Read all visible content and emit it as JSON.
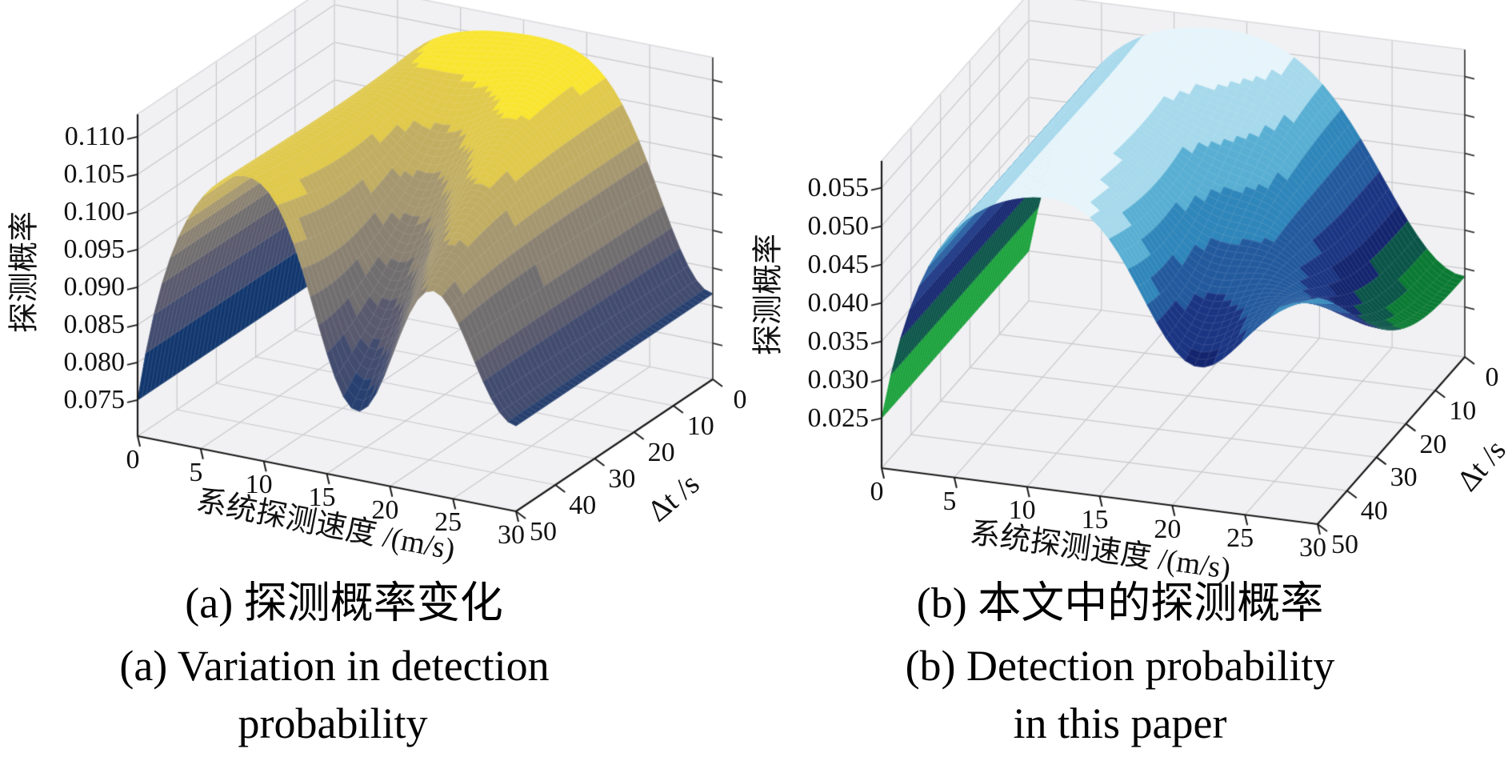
{
  "figure": {
    "background": "#ffffff",
    "plots": [
      {
        "id": "a",
        "z_axis": {
          "label": "探测概率",
          "tick_labels": [
            "0.075",
            "0.080",
            "0.085",
            "0.090",
            "0.095",
            "0.100",
            "0.105",
            "0.110"
          ],
          "tick_values": [
            0.075,
            0.08,
            0.085,
            0.09,
            0.095,
            0.1,
            0.105,
            0.11
          ]
        },
        "x_axis": {
          "label": "系统探测速度 /(m/s)",
          "tick_labels": [
            "0",
            "5",
            "10",
            "15",
            "20",
            "25",
            "30"
          ],
          "tick_values": [
            0,
            5,
            10,
            15,
            20,
            25,
            30
          ]
        },
        "y_axis": {
          "label": "Δt /s",
          "tick_labels": [
            "0",
            "10",
            "20",
            "30",
            "40",
            "50"
          ],
          "tick_values": [
            0,
            10,
            20,
            30,
            40,
            50
          ]
        },
        "caption": {
          "line1": "(a) 探测概率变化",
          "line2": "(a) Variation in detection",
          "line3": "probability"
        },
        "colormap_name": "cividis-banded",
        "band_colors": [
          "#12376e",
          "#27406f",
          "#424c6f",
          "#5a5a6e",
          "#716e6f",
          "#8a8172",
          "#a5976f",
          "#c2ae62",
          "#e0c94b",
          "#f9e530"
        ]
      },
      {
        "id": "b",
        "z_axis": {
          "label": "探测概率",
          "tick_labels": [
            "0.025",
            "0.030",
            "0.035",
            "0.040",
            "0.045",
            "0.050",
            "0.055"
          ],
          "tick_values": [
            0.025,
            0.03,
            0.035,
            0.04,
            0.045,
            0.05,
            0.055
          ]
        },
        "x_axis": {
          "label": "系统探测速度 /(m/s)",
          "tick_labels": [
            "0",
            "5",
            "10",
            "15",
            "20",
            "25",
            "30"
          ],
          "tick_values": [
            0,
            5,
            10,
            15,
            20,
            25,
            30
          ]
        },
        "y_axis": {
          "label": "Δt /s",
          "tick_labels": [
            "0",
            "10",
            "20",
            "30",
            "40",
            "50"
          ],
          "tick_values": [
            0,
            10,
            20,
            30,
            40,
            50
          ]
        },
        "caption": {
          "line1": "(b) 本文中的探测概率",
          "line2": "(b) Detection probability",
          "line3": "in this paper"
        },
        "colormap_name": "ocean-banded",
        "band_colors": [
          "#1ba23c",
          "#0b7b33",
          "#0a5448",
          "#14256f",
          "#1b3583",
          "#235a9e",
          "#2f86ba",
          "#58afd3",
          "#a6d9ec",
          "#e6f5fb"
        ]
      }
    ]
  },
  "chart_data": [
    {
      "type": "surface",
      "title": "(a) 探测概率变化 / (a) Variation in detection probability",
      "xlabel": "系统探测速度 /(m/s)",
      "ylabel": "Δt /s",
      "zlabel": "探测概率",
      "x_ticks": [
        0,
        5,
        10,
        15,
        20,
        25,
        30
      ],
      "y_ticks": [
        0,
        10,
        20,
        30,
        40,
        50
      ],
      "z_ticks": [
        0.075,
        0.08,
        0.085,
        0.09,
        0.095,
        0.1,
        0.105,
        0.11
      ],
      "zlim": [
        0.075,
        0.11
      ],
      "grid": true,
      "legend": false,
      "x_sample": [
        0,
        5,
        10,
        15,
        20,
        25,
        30
      ],
      "y_sample": [
        0,
        10,
        20,
        30,
        40,
        50
      ],
      "z_grid_by_y": [
        [
          0.075,
          0.1034,
          0.1097,
          0.111,
          0.1096,
          0.0966,
          0.0816
        ],
        [
          0.075,
          0.1034,
          0.1076,
          0.1082,
          0.1091,
          0.0966,
          0.0816
        ],
        [
          0.075,
          0.1032,
          0.1057,
          0.1025,
          0.1076,
          0.0966,
          0.0816
        ],
        [
          0.075,
          0.1033,
          0.1051,
          0.0955,
          0.1064,
          0.0966,
          0.0816
        ],
        [
          0.075,
          0.1033,
          0.1056,
          0.0895,
          0.0971,
          0.096,
          0.0816
        ],
        [
          0.075,
          0.1033,
          0.1068,
          0.0862,
          0.0869,
          0.095,
          0.0816
        ]
      ],
      "surface_model": {
        "zmin": 0.075,
        "span": 0.0365,
        "rise_k": 9,
        "valley_depth": 0.88,
        "valley_w_pow": 1.4,
        "valley_uc0": 0.4,
        "valley_uc_slope": 0.18,
        "valley_width": 0.026,
        "corner_depth": 0.82,
        "corner_u_width": 0.04,
        "corner_w_center": 0.5,
        "corner_w_width": 99,
        "corner_w_pow": 2,
        "zmax_clamp": 0.1115
      }
    },
    {
      "type": "surface",
      "title": "(b) 本文中的探测概率 / (b) Detection probability in this paper",
      "xlabel": "系统探测速度 /(m/s)",
      "ylabel": "Δt /s",
      "zlabel": "探测概率",
      "x_ticks": [
        0,
        5,
        10,
        15,
        20,
        25,
        30
      ],
      "y_ticks": [
        0,
        10,
        20,
        30,
        40,
        50
      ],
      "z_ticks": [
        0.025,
        0.03,
        0.035,
        0.04,
        0.045,
        0.05,
        0.055
      ],
      "zlim": [
        0.025,
        0.055
      ],
      "grid": true,
      "legend": false,
      "x_sample": [
        0,
        5,
        10,
        15,
        20,
        25,
        30
      ],
      "y_sample": [
        0,
        10,
        20,
        30,
        40,
        50
      ],
      "z_grid_by_y": [
        [
          0.025,
          0.0507,
          0.0563,
          0.0567,
          0.0495,
          0.036,
          0.029
        ],
        [
          0.025,
          0.0506,
          0.0556,
          0.0542,
          0.0485,
          0.0361,
          0.0292
        ],
        [
          0.025,
          0.0505,
          0.0554,
          0.0519,
          0.0488,
          0.0396,
          0.031
        ],
        [
          0.025,
          0.0506,
          0.0557,
          0.0508,
          0.0427,
          0.0391,
          0.0354
        ],
        [
          0.025,
          0.0506,
          0.056,
          0.0519,
          0.0413,
          0.0406,
          0.042
        ],
        [
          0.025,
          0.0506,
          0.0562,
          0.0534,
          0.039,
          0.0414,
          0.049
        ]
      ],
      "surface_model": {
        "zmin": 0.025,
        "span": 0.033,
        "rise_k": 9,
        "valley_depth": 0.6,
        "valley_w_pow": 1.3,
        "valley_uc0": 0.47,
        "valley_uc_slope": 0.25,
        "valley_width": 0.03,
        "corner_depth": 0.88,
        "corner_u_width": 0.07,
        "corner_w_center": 0.0,
        "corner_w_width": 0.95,
        "corner_w_pow": 3,
        "zmax_clamp": 0.0578
      }
    }
  ]
}
